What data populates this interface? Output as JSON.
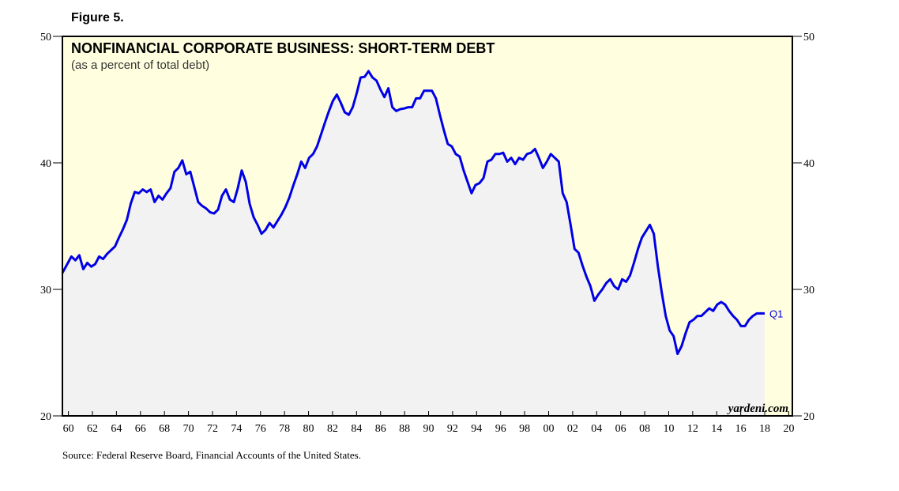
{
  "figure_label": "Figure 5.",
  "source": "Source: Federal Reserve Board, Financial Accounts of the United States.",
  "chart_data": {
    "type": "line",
    "title": "NONFINANCIAL CORPORATE BUSINESS: SHORT-TERM DEBT",
    "subtitle": "(as a percent of total debt)",
    "annotations": [
      "Q1",
      "yardeni.com"
    ],
    "xlim": [
      1959.5,
      2020.3
    ],
    "ylim": [
      20,
      50
    ],
    "yticks": [
      20,
      30,
      40,
      50
    ],
    "xticks": [
      {
        "value": 1960,
        "label": "60"
      },
      {
        "value": 1962,
        "label": "62"
      },
      {
        "value": 1964,
        "label": "64"
      },
      {
        "value": 1966,
        "label": "66"
      },
      {
        "value": 1968,
        "label": "68"
      },
      {
        "value": 1970,
        "label": "70"
      },
      {
        "value": 1972,
        "label": "72"
      },
      {
        "value": 1974,
        "label": "74"
      },
      {
        "value": 1976,
        "label": "76"
      },
      {
        "value": 1978,
        "label": "78"
      },
      {
        "value": 1980,
        "label": "80"
      },
      {
        "value": 1982,
        "label": "82"
      },
      {
        "value": 1984,
        "label": "84"
      },
      {
        "value": 1986,
        "label": "86"
      },
      {
        "value": 1988,
        "label": "88"
      },
      {
        "value": 1990,
        "label": "90"
      },
      {
        "value": 1992,
        "label": "92"
      },
      {
        "value": 1994,
        "label": "94"
      },
      {
        "value": 1996,
        "label": "96"
      },
      {
        "value": 1998,
        "label": "98"
      },
      {
        "value": 2000,
        "label": "00"
      },
      {
        "value": 2002,
        "label": "02"
      },
      {
        "value": 2004,
        "label": "04"
      },
      {
        "value": 2006,
        "label": "06"
      },
      {
        "value": 2008,
        "label": "08"
      },
      {
        "value": 2010,
        "label": "10"
      },
      {
        "value": 2012,
        "label": "12"
      },
      {
        "value": 2014,
        "label": "14"
      },
      {
        "value": 2016,
        "label": "16"
      },
      {
        "value": 2018,
        "label": "18"
      },
      {
        "value": 2020,
        "label": "20"
      }
    ],
    "x": [
      1959.5,
      1960.25,
      1960.58,
      1960.91,
      1961.24,
      1961.57,
      1961.9,
      1962.23,
      1962.56,
      1962.89,
      1963.22,
      1963.55,
      1963.88,
      1964.21,
      1964.54,
      1964.87,
      1965.2,
      1965.53,
      1965.86,
      1966.19,
      1966.52,
      1966.85,
      1967.18,
      1967.51,
      1967.84,
      1968.17,
      1968.5,
      1968.83,
      1969.16,
      1969.49,
      1969.82,
      1970.15,
      1970.48,
      1970.81,
      1971.14,
      1971.47,
      1971.8,
      1972.13,
      1972.46,
      1972.79,
      1973.12,
      1973.45,
      1973.78,
      1974.11,
      1974.44,
      1974.77,
      1975.1,
      1975.43,
      1975.76,
      1976.09,
      1976.42,
      1976.75,
      1977.08,
      1977.41,
      1977.74,
      1978.07,
      1978.4,
      1978.73,
      1979.06,
      1979.39,
      1979.72,
      1980.05,
      1980.38,
      1980.71,
      1981.04,
      1981.37,
      1981.7,
      1982.03,
      1982.36,
      1982.69,
      1983.02,
      1983.35,
      1983.68,
      1984.01,
      1984.34,
      1984.67,
      1985.0,
      1985.33,
      1985.66,
      1985.99,
      1986.32,
      1986.65,
      1986.98,
      1987.31,
      1987.64,
      1987.97,
      1988.3,
      1988.63,
      1988.96,
      1989.29,
      1989.62,
      1989.95,
      1990.28,
      1990.61,
      1990.94,
      1991.27,
      1991.6,
      1991.93,
      1992.26,
      1992.59,
      1992.92,
      1993.25,
      1993.58,
      1993.91,
      1994.24,
      1994.57,
      1994.9,
      1995.23,
      1995.56,
      1995.89,
      1996.22,
      1996.55,
      1996.88,
      1997.21,
      1997.54,
      1997.87,
      1998.2,
      1998.53,
      1998.86,
      1999.19,
      1999.52,
      1999.85,
      2000.18,
      2000.51,
      2000.84,
      2001.17,
      2001.5,
      2001.83,
      2002.16,
      2002.49,
      2002.82,
      2003.15,
      2003.48,
      2003.81,
      2004.14,
      2004.47,
      2004.8,
      2005.13,
      2005.46,
      2005.79,
      2006.12,
      2006.45,
      2006.78,
      2007.11,
      2007.44,
      2007.77,
      2008.1,
      2008.43,
      2008.76,
      2009.09,
      2009.42,
      2009.75,
      2010.08,
      2010.41,
      2010.74,
      2011.07,
      2011.4,
      2011.73,
      2012.06,
      2012.39,
      2012.72,
      2013.05,
      2013.38,
      2013.71,
      2014.04,
      2014.37,
      2014.7,
      2015.03,
      2015.36,
      2015.69,
      2016.02,
      2016.35,
      2016.68,
      2017.01,
      2017.34,
      2017.67,
      2018.0
    ],
    "series": [
      {
        "name": "Short-term debt",
        "color": "#0000e6",
        "values": [
          31.3,
          32.6,
          32.3,
          32.7,
          31.6,
          32.1,
          31.8,
          32.0,
          32.6,
          32.4,
          32.8,
          33.1,
          33.4,
          34.1,
          34.75,
          35.5,
          36.8,
          37.7,
          37.6,
          37.9,
          37.7,
          37.9,
          36.9,
          37.4,
          37.1,
          37.6,
          38.0,
          39.3,
          39.6,
          40.2,
          39.1,
          39.3,
          38.1,
          36.9,
          36.6,
          36.4,
          36.1,
          36.0,
          36.3,
          37.4,
          37.9,
          37.1,
          36.9,
          38.0,
          39.4,
          38.5,
          36.75,
          35.7,
          35.1,
          34.4,
          34.7,
          35.25,
          34.9,
          35.4,
          35.9,
          36.5,
          37.25,
          38.2,
          39.1,
          40.1,
          39.6,
          40.4,
          40.7,
          41.3,
          42.25,
          43.2,
          44.1,
          44.9,
          45.4,
          44.75,
          44.0,
          43.8,
          44.4,
          45.5,
          46.75,
          46.8,
          47.25,
          46.75,
          46.5,
          45.8,
          45.2,
          45.9,
          44.4,
          44.1,
          44.25,
          44.3,
          44.4,
          44.4,
          45.1,
          45.1,
          45.7,
          45.7,
          45.7,
          45.1,
          43.8,
          42.6,
          41.5,
          41.3,
          40.7,
          40.5,
          39.4,
          38.5,
          37.6,
          38.25,
          38.4,
          38.8,
          40.1,
          40.25,
          40.7,
          40.7,
          40.8,
          40.1,
          40.4,
          39.9,
          40.4,
          40.25,
          40.7,
          40.8,
          41.1,
          40.4,
          39.6,
          40.1,
          40.7,
          40.4,
          40.1,
          37.6,
          36.9,
          35.1,
          33.2,
          32.9,
          31.9,
          31.0,
          30.25,
          29.1,
          29.6,
          30.0,
          30.5,
          30.8,
          30.25,
          30.0,
          30.8,
          30.6,
          31.1,
          32.1,
          33.2,
          34.1,
          34.6,
          35.1,
          34.4,
          31.9,
          29.75,
          27.9,
          26.75,
          26.3,
          24.9,
          25.5,
          26.5,
          27.4,
          27.6,
          27.9,
          27.9,
          28.2,
          28.5,
          28.3,
          28.8,
          29.0,
          28.8,
          28.3,
          27.9,
          27.6,
          27.1,
          27.1,
          27.6,
          27.9,
          28.1,
          28.1,
          28.1
        ]
      }
    ],
    "plot_background": "#ffffe0",
    "area_color": "#f2f2f2"
  }
}
